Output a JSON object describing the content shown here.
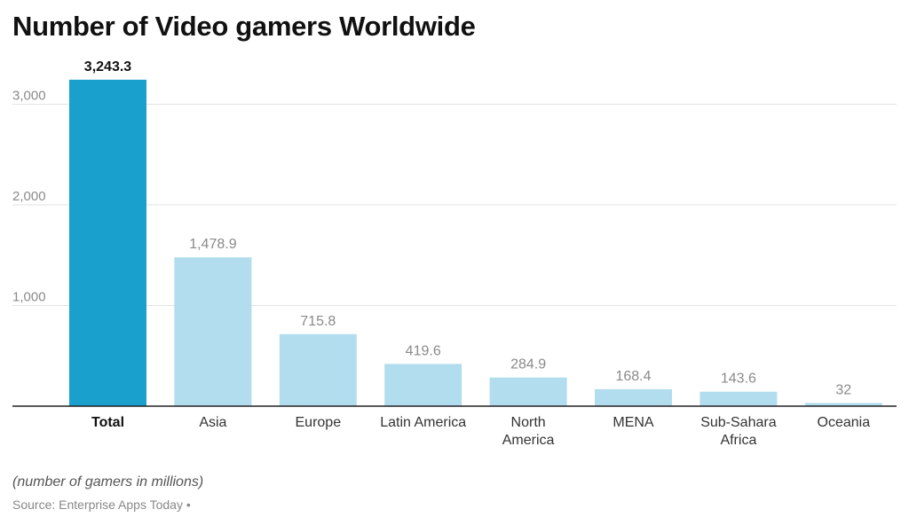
{
  "chart_data": {
    "type": "bar",
    "title": "Number of Video gamers Worldwide",
    "categories": [
      "Total",
      "Asia",
      "Europe",
      "Latin America",
      "North America",
      "MENA",
      "Sub-Sahara Africa",
      "Oceania"
    ],
    "category_lines": [
      [
        "Total"
      ],
      [
        "Asia"
      ],
      [
        "Europe"
      ],
      [
        "Latin America"
      ],
      [
        "North",
        "America"
      ],
      [
        "MENA"
      ],
      [
        "Sub-Sahara",
        "Africa"
      ],
      [
        "Oceania"
      ]
    ],
    "values": [
      3243.3,
      1478.9,
      715.8,
      419.6,
      284.9,
      168.4,
      143.6,
      32
    ],
    "value_labels": [
      "3,243.3",
      "1,478.9",
      "715.8",
      "419.6",
      "284.9",
      "168.4",
      "143.6",
      "32"
    ],
    "highlight_index": 0,
    "colors": {
      "highlight": "#1aa0cc",
      "normal": "#b2ddee",
      "grid": "#e3e3e3",
      "axis": "#222222"
    },
    "yticks": [
      1000,
      2000,
      3000
    ],
    "ytick_labels": [
      "1,000",
      "2,000",
      "3,000"
    ],
    "ylim": [
      0,
      3400
    ],
    "xlabel": "",
    "ylabel": "",
    "note": "(number of gamers in millions)",
    "source": "Source: Enterprise Apps Today •"
  }
}
